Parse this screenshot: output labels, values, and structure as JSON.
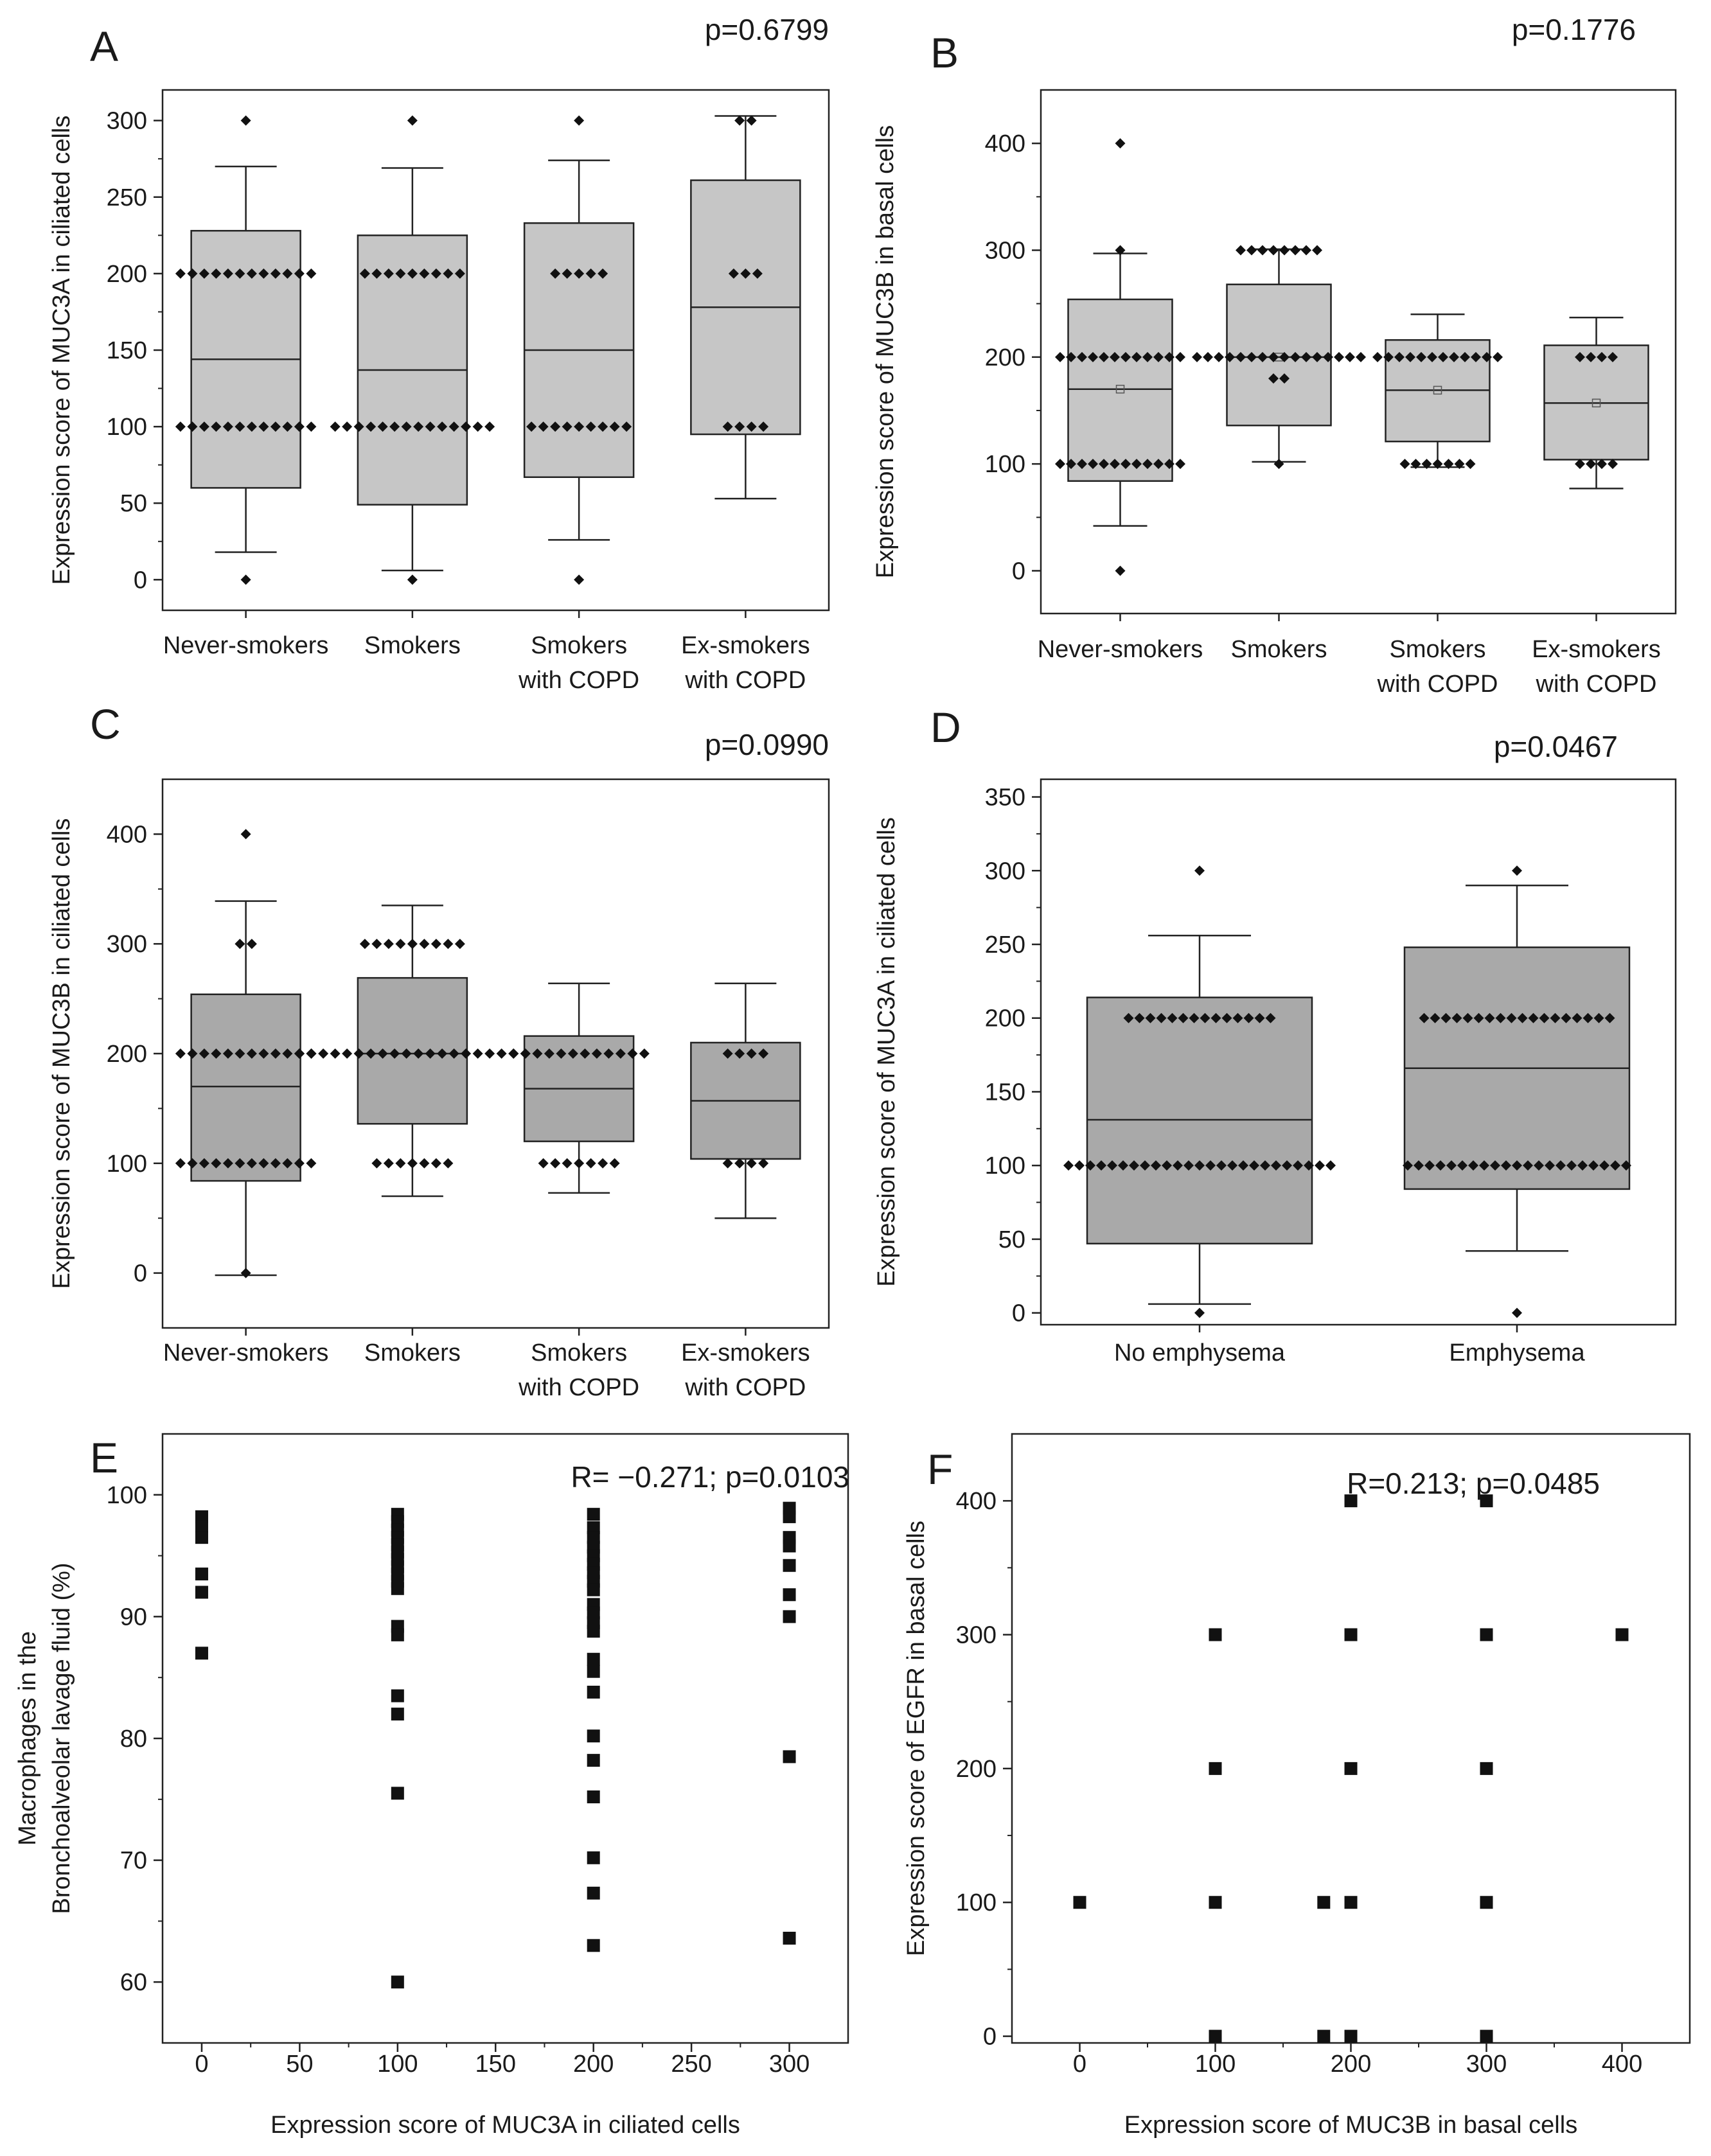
{
  "chart_data": [
    {
      "panel": "A",
      "type": "box",
      "stat": "p=0.6799",
      "ylabel": "Expression score of MUC3A in ciliated cells",
      "xlabel": "",
      "ylim": [
        -20,
        320
      ],
      "yticks": [
        0,
        50,
        100,
        150,
        200,
        250,
        300
      ],
      "box_color": "#c6c6c6",
      "groups": [
        {
          "label": [
            "Never-smokers"
          ],
          "whisker_low": 18,
          "q1": 60,
          "median": 144,
          "q3": 228,
          "whisker_high": 270,
          "points": [
            {
              "y": 300,
              "n": 1
            },
            {
              "y": 200,
              "n": 12
            },
            {
              "y": 100,
              "n": 12
            },
            {
              "y": 0,
              "n": 1
            }
          ]
        },
        {
          "label": [
            "Smokers"
          ],
          "whisker_low": 6,
          "q1": 49,
          "median": 137,
          "q3": 225,
          "whisker_high": 269,
          "points": [
            {
              "y": 300,
              "n": 1
            },
            {
              "y": 200,
              "n": 9
            },
            {
              "y": 100,
              "n": 14
            },
            {
              "y": 0,
              "n": 1
            }
          ]
        },
        {
          "label": [
            "Smokers",
            "with COPD"
          ],
          "whisker_low": 26,
          "q1": 67,
          "median": 150,
          "q3": 233,
          "whisker_high": 274,
          "points": [
            {
              "y": 300,
              "n": 1
            },
            {
              "y": 200,
              "n": 5
            },
            {
              "y": 100,
              "n": 9
            },
            {
              "y": 0,
              "n": 1
            }
          ]
        },
        {
          "label": [
            "Ex-smokers",
            "with COPD"
          ],
          "whisker_low": 53,
          "q1": 95,
          "median": 178,
          "q3": 261,
          "whisker_high": 303,
          "points": [
            {
              "y": 300,
              "n": 2
            },
            {
              "y": 200,
              "n": 3
            },
            {
              "y": 100,
              "n": 4
            }
          ]
        }
      ]
    },
    {
      "panel": "B",
      "type": "box",
      "stat": "p=0.1776",
      "ylabel": "Expression score of MUC3B in basal cells",
      "xlabel": "",
      "ylim": [
        -40,
        450
      ],
      "yticks": [
        0,
        100,
        200,
        300,
        400
      ],
      "box_color": "#c6c6c6",
      "groups": [
        {
          "label": [
            "Never-smokers"
          ],
          "whisker_low": 42,
          "q1": 84,
          "median": 170,
          "q3": 254,
          "whisker_high": 297,
          "mean": 170,
          "points": [
            {
              "y": 400,
              "n": 1
            },
            {
              "y": 300,
              "n": 1
            },
            {
              "y": 200,
              "n": 12
            },
            {
              "y": 100,
              "n": 12
            },
            {
              "y": 0,
              "n": 1
            }
          ]
        },
        {
          "label": [
            "Smokers"
          ],
          "whisker_low": 102,
          "q1": 136,
          "median": 200,
          "q3": 268,
          "whisker_high": 301,
          "mean": 200,
          "points": [
            {
              "y": 300,
              "n": 8
            },
            {
              "y": 200,
              "n": 16
            },
            {
              "y": 180,
              "n": 2
            },
            {
              "y": 100,
              "n": 1
            }
          ]
        },
        {
          "label": [
            "Smokers",
            "with COPD"
          ],
          "whisker_low": 97,
          "q1": 121,
          "median": 169,
          "q3": 216,
          "whisker_high": 240,
          "mean": 169,
          "points": [
            {
              "y": 200,
              "n": 12
            },
            {
              "y": 100,
              "n": 7
            }
          ]
        },
        {
          "label": [
            "Ex-smokers",
            "with COPD"
          ],
          "whisker_low": 77,
          "q1": 104,
          "median": 157,
          "q3": 211,
          "whisker_high": 237,
          "mean": 157,
          "points": [
            {
              "y": 200,
              "n": 4
            },
            {
              "y": 100,
              "n": 4
            }
          ]
        }
      ]
    },
    {
      "panel": "C",
      "type": "box",
      "stat": "p=0.0990",
      "ylabel": "Expression score of MUC3B in ciliated cells",
      "xlabel": "",
      "ylim": [
        -50,
        450
      ],
      "yticks": [
        0,
        100,
        200,
        300,
        400
      ],
      "box_color": "#a9a9a9",
      "groups": [
        {
          "label": [
            "Never-smokers"
          ],
          "whisker_low": -2,
          "q1": 84,
          "median": 170,
          "q3": 254,
          "whisker_high": 339,
          "points": [
            {
              "y": 400,
              "n": 1
            },
            {
              "y": 300,
              "n": 2
            },
            {
              "y": 200,
              "n": 12
            },
            {
              "y": 100,
              "n": 12
            },
            {
              "y": 0,
              "n": 1
            }
          ]
        },
        {
          "label": [
            "Smokers"
          ],
          "whisker_low": 70,
          "q1": 136,
          "median": 200,
          "q3": 269,
          "whisker_high": 335,
          "points": [
            {
              "y": 300,
              "n": 9
            },
            {
              "y": 200,
              "n": 20
            },
            {
              "y": 100,
              "n": 7
            }
          ]
        },
        {
          "label": [
            "Smokers",
            "with COPD"
          ],
          "whisker_low": 73,
          "q1": 120,
          "median": 168,
          "q3": 216,
          "whisker_high": 264,
          "points": [
            {
              "y": 200,
              "n": 12
            },
            {
              "y": 100,
              "n": 7
            }
          ]
        },
        {
          "label": [
            "Ex-smokers",
            "with COPD"
          ],
          "whisker_low": 50,
          "q1": 104,
          "median": 157,
          "q3": 210,
          "whisker_high": 264,
          "points": [
            {
              "y": 200,
              "n": 4
            },
            {
              "y": 100,
              "n": 4
            }
          ]
        }
      ]
    },
    {
      "panel": "D",
      "type": "box",
      "stat": "p=0.0467",
      "ylabel": "Expression score of MUC3A in ciliated cells",
      "xlabel": "",
      "ylim": [
        -8,
        362
      ],
      "yticks": [
        0,
        50,
        100,
        150,
        200,
        250,
        300,
        350
      ],
      "box_color": "#a9a9a9",
      "groups": [
        {
          "label": [
            "No emphysema"
          ],
          "whisker_low": 6,
          "q1": 47,
          "median": 131,
          "q3": 214,
          "whisker_high": 256,
          "points": [
            {
              "y": 300,
              "n": 1
            },
            {
              "y": 200,
              "n": 14
            },
            {
              "y": 100,
              "n": 25
            },
            {
              "y": 0,
              "n": 1
            }
          ]
        },
        {
          "label": [
            "Emphysema"
          ],
          "whisker_low": 42,
          "q1": 84,
          "median": 166,
          "q3": 248,
          "whisker_high": 290,
          "points": [
            {
              "y": 300,
              "n": 1
            },
            {
              "y": 200,
              "n": 18
            },
            {
              "y": 100,
              "n": 21
            },
            {
              "y": 0,
              "n": 1
            }
          ]
        }
      ]
    },
    {
      "panel": "E",
      "type": "scatter",
      "stat": "R= −0.271; p=0.0103",
      "ylabel": [
        "Macrophages in the",
        "Bronchoalveolar lavage fluid (%)"
      ],
      "xlabel": "Expression score of MUC3A in ciliated cells",
      "xlim": [
        -20,
        330
      ],
      "ylim": [
        55,
        105
      ],
      "xticks": [
        0,
        50,
        100,
        150,
        200,
        250,
        300
      ],
      "yticks": [
        60,
        70,
        80,
        90,
        100
      ],
      "points": [
        [
          0,
          98.2
        ],
        [
          0,
          97.4
        ],
        [
          0,
          96.5
        ],
        [
          0,
          93.5
        ],
        [
          0,
          92
        ],
        [
          0,
          87
        ],
        [
          100,
          98.4
        ],
        [
          100,
          97.8
        ],
        [
          100,
          97.1
        ],
        [
          100,
          96.5
        ],
        [
          100,
          95.9
        ],
        [
          100,
          95.3
        ],
        [
          100,
          94.7
        ],
        [
          100,
          94.1
        ],
        [
          100,
          93.5
        ],
        [
          100,
          92.9
        ],
        [
          100,
          92.3
        ],
        [
          100,
          89.2
        ],
        [
          100,
          88.5
        ],
        [
          100,
          83.5
        ],
        [
          100,
          82
        ],
        [
          100,
          75.5
        ],
        [
          100,
          60
        ],
        [
          200,
          98.4
        ],
        [
          200,
          97.3
        ],
        [
          200,
          96.5
        ],
        [
          200,
          95.7
        ],
        [
          200,
          95
        ],
        [
          200,
          94.3
        ],
        [
          200,
          93.6
        ],
        [
          200,
          92.9
        ],
        [
          200,
          92.2
        ],
        [
          200,
          91
        ],
        [
          200,
          90.3
        ],
        [
          200,
          89.5
        ],
        [
          200,
          88.8
        ],
        [
          200,
          86.5
        ],
        [
          200,
          85.5
        ],
        [
          200,
          83.8
        ],
        [
          200,
          80.2
        ],
        [
          200,
          78.2
        ],
        [
          200,
          75.2
        ],
        [
          200,
          70.2
        ],
        [
          200,
          67.3
        ],
        [
          200,
          63
        ],
        [
          300,
          98.9
        ],
        [
          300,
          98.2
        ],
        [
          300,
          96.5
        ],
        [
          300,
          95.8
        ],
        [
          300,
          94.2
        ],
        [
          300,
          91.8
        ],
        [
          300,
          90
        ],
        [
          300,
          78.5
        ],
        [
          300,
          63.6
        ]
      ]
    },
    {
      "panel": "F",
      "type": "scatter",
      "stat": "R=0.213; p=0.0485",
      "ylabel": "Expression score of EGFR in basal cells",
      "xlabel": "Expression score of MUC3B in basal cells",
      "xlim": [
        -50,
        450
      ],
      "ylim": [
        -5,
        450
      ],
      "xticks": [
        0,
        100,
        200,
        300,
        400
      ],
      "yticks": [
        0,
        100,
        200,
        300,
        400
      ],
      "points": [
        [
          0,
          100
        ],
        [
          100,
          300
        ],
        [
          100,
          200
        ],
        [
          100,
          100
        ],
        [
          100,
          0
        ],
        [
          180,
          100
        ],
        [
          180,
          0
        ],
        [
          200,
          400
        ],
        [
          200,
          300
        ],
        [
          200,
          200
        ],
        [
          200,
          100
        ],
        [
          200,
          0
        ],
        [
          300,
          400
        ],
        [
          300,
          300
        ],
        [
          300,
          200
        ],
        [
          300,
          100
        ],
        [
          300,
          0
        ],
        [
          400,
          300
        ]
      ]
    }
  ]
}
